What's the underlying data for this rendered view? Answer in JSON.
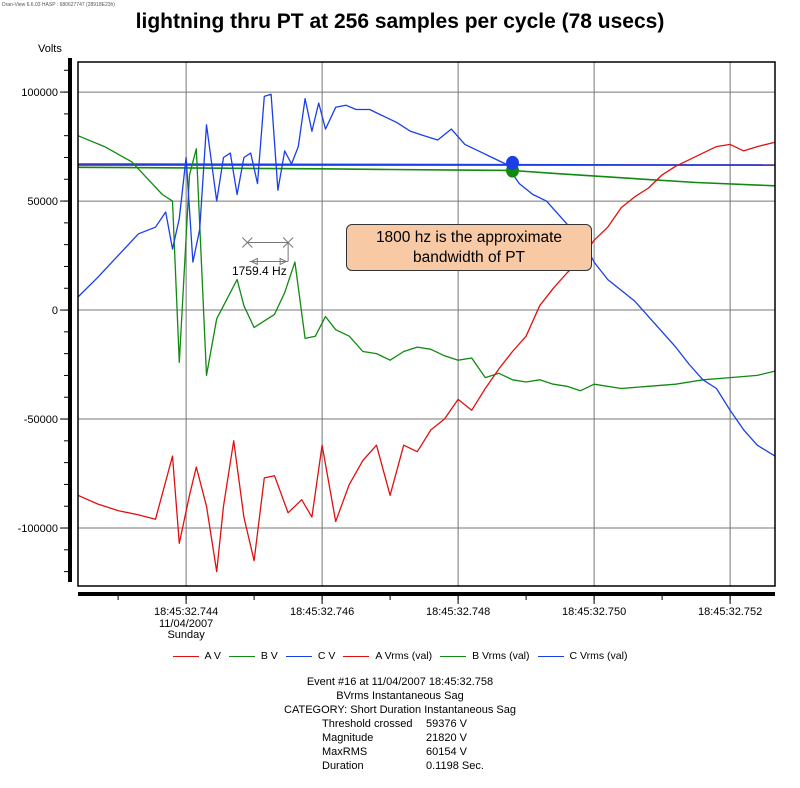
{
  "watermark": "Dran-View 6.6.03 HASP : 680627747 (28918E23h)",
  "title": "lightning thru PT at 256 samples per cycle (78 usecs)",
  "chart_data": {
    "type": "line",
    "title": "lightning thru PT at 256 samples per cycle (78 usecs)",
    "ylabel": "Volts",
    "xlabel": "",
    "x_units": "ms after 18:45:32.744",
    "xlim": [
      -1.59,
      8.66
    ],
    "ylim": [
      -126600,
      113800
    ],
    "grid": true,
    "y_ticks": [
      100000,
      50000,
      0,
      -50000,
      -100000
    ],
    "y_tick_labels": [
      "100000",
      "50000",
      "0",
      "-50000",
      "-100000"
    ],
    "x_ticks": [
      0,
      2,
      4,
      6,
      8
    ],
    "x_tick_labels": [
      "18:45:32.744",
      "18:45:32.746",
      "18:45:32.748",
      "18:45:32.750",
      "18:45:32.752"
    ],
    "x_first_tick_sublabels": [
      "11/04/2007",
      "Sunday"
    ],
    "legend_position": "bottom",
    "series": [
      {
        "name": "A V",
        "color": "#e01010",
        "x": [
          -1.59,
          -1.3,
          -1.0,
          -0.7,
          -0.45,
          -0.2,
          -0.1,
          0.05,
          0.15,
          0.3,
          0.45,
          0.55,
          0.7,
          0.85,
          1.0,
          1.15,
          1.3,
          1.5,
          1.7,
          1.85,
          2.0,
          2.2,
          2.4,
          2.6,
          2.8,
          3.0,
          3.2,
          3.4,
          3.6,
          3.8,
          4.0,
          4.2,
          4.4,
          4.6,
          4.8,
          5.0,
          5.2,
          5.4,
          5.6,
          5.8,
          6.0,
          6.2,
          6.4,
          6.6,
          6.8,
          7.0,
          7.2,
          7.4,
          7.6,
          7.8,
          8.0,
          8.2,
          8.4,
          8.66
        ],
        "values": [
          -85000,
          -89000,
          -92000,
          -94000,
          -96000,
          -67000,
          -107000,
          -85000,
          -72000,
          -90000,
          -120000,
          -90000,
          -60000,
          -95000,
          -115000,
          -77000,
          -76000,
          -93000,
          -87000,
          -95000,
          -62000,
          -97000,
          -80000,
          -69000,
          -62000,
          -85000,
          -62000,
          -65000,
          -55000,
          -50000,
          -41000,
          -46000,
          -36000,
          -27000,
          -19000,
          -12000,
          2000,
          10000,
          17000,
          23000,
          32000,
          38000,
          47000,
          52000,
          56000,
          62000,
          66000,
          69000,
          72000,
          75000,
          76000,
          73000,
          75000,
          77000
        ]
      },
      {
        "name": "B V",
        "color": "#108a10",
        "x": [
          -1.59,
          -1.2,
          -0.8,
          -0.5,
          -0.35,
          -0.2,
          -0.1,
          0.05,
          0.15,
          0.3,
          0.45,
          0.6,
          0.75,
          0.85,
          1.0,
          1.15,
          1.3,
          1.45,
          1.6,
          1.75,
          1.9,
          2.05,
          2.2,
          2.4,
          2.6,
          2.8,
          3.0,
          3.2,
          3.4,
          3.6,
          3.8,
          4.0,
          4.2,
          4.4,
          4.6,
          4.8,
          5.0,
          5.2,
          5.4,
          5.6,
          5.8,
          6.0,
          6.4,
          6.8,
          7.2,
          7.6,
          8.0,
          8.4,
          8.66
        ],
        "values": [
          80000,
          75000,
          68000,
          58000,
          53000,
          50000,
          -24000,
          62000,
          74000,
          -30000,
          -4000,
          5000,
          14000,
          2000,
          -8000,
          -5000,
          -2000,
          8000,
          22000,
          -13000,
          -12000,
          -3000,
          -9000,
          -12000,
          -19000,
          -20000,
          -23000,
          -19000,
          -17000,
          -18000,
          -21000,
          -23000,
          -22000,
          -31000,
          -29000,
          -32000,
          -33000,
          -32000,
          -34000,
          -35000,
          -37000,
          -34000,
          -36000,
          -35000,
          -34000,
          -32000,
          -31000,
          -30000,
          -28000
        ]
      },
      {
        "name": "C V",
        "color": "#1a3fe8",
        "x": [
          -1.59,
          -1.3,
          -1.0,
          -0.7,
          -0.45,
          -0.3,
          -0.2,
          -0.1,
          0.0,
          0.1,
          0.2,
          0.3,
          0.45,
          0.55,
          0.65,
          0.75,
          0.85,
          0.95,
          1.05,
          1.15,
          1.25,
          1.35,
          1.45,
          1.55,
          1.65,
          1.75,
          1.85,
          1.95,
          2.05,
          2.2,
          2.35,
          2.5,
          2.7,
          2.9,
          3.1,
          3.3,
          3.5,
          3.7,
          3.9,
          4.1,
          4.3,
          4.5,
          4.7,
          4.9,
          5.1,
          5.3,
          5.5,
          5.7,
          5.9,
          6.0,
          6.2,
          6.4,
          6.6,
          6.8,
          7.0,
          7.2,
          7.4,
          7.6,
          7.8,
          8.0,
          8.2,
          8.4,
          8.66
        ],
        "values": [
          6000,
          15000,
          25000,
          35000,
          38000,
          45000,
          28000,
          42000,
          70000,
          22000,
          37000,
          85000,
          50000,
          70000,
          72000,
          53000,
          70000,
          72000,
          58000,
          98000,
          99000,
          55000,
          73000,
          67000,
          75000,
          97000,
          82000,
          95000,
          83000,
          93000,
          94000,
          92000,
          92000,
          89000,
          86000,
          82000,
          80000,
          78000,
          83000,
          76000,
          73000,
          70000,
          67000,
          58000,
          53000,
          50000,
          43000,
          36000,
          28000,
          22000,
          14000,
          9000,
          4000,
          -3000,
          -10000,
          -17000,
          -25000,
          -32000,
          -36000,
          -46000,
          -55000,
          -62000,
          -67000
        ]
      },
      {
        "name": "A Vrms (val)",
        "color": "#e01010",
        "x": [
          -1.59,
          8.66
        ],
        "values": [
          66500,
          66500
        ]
      },
      {
        "name": "B Vrms (val)",
        "color": "#108a10",
        "x": [
          -1.59,
          0,
          1,
          2,
          3,
          4,
          4.8,
          5.5,
          6.5,
          7.5,
          8.66
        ],
        "values": [
          65500,
          65200,
          65000,
          64800,
          64500,
          64200,
          64000,
          62500,
          60500,
          58500,
          57000
        ]
      },
      {
        "name": "C Vrms (val)",
        "color": "#1a3fe8",
        "x": [
          -1.59,
          8.66
        ],
        "values": [
          67000,
          66500
        ]
      }
    ],
    "markers": [
      {
        "series": "C Vrms (val)",
        "x": 4.8,
        "y": 67500,
        "color": "#1a3fe8"
      },
      {
        "series": "B Vrms (val)",
        "x": 4.8,
        "y": 64000,
        "color": "#108a10"
      }
    ],
    "frequency_cursor": {
      "x1": 0.9,
      "x2": 1.5,
      "y": 31000,
      "label": "1759.4 Hz"
    },
    "annotation": {
      "line1": "1800 hz is the approximate",
      "line2": "bandwidth of PT",
      "fill": "#f7c9a4"
    }
  },
  "event": {
    "header": "Event #16 at 11/04/2007 18:45:32.758",
    "type": "BVrms Instantaneous Sag",
    "category": "CATEGORY: Short Duration Instantaneous Sag",
    "rows": [
      {
        "key": "Threshold crossed",
        "value": "59376 V"
      },
      {
        "key": "Magnitude",
        "value": "21820 V"
      },
      {
        "key": "MaxRMS",
        "value": "60154 V"
      },
      {
        "key": "Duration",
        "value": "0.1198 Sec."
      }
    ]
  }
}
